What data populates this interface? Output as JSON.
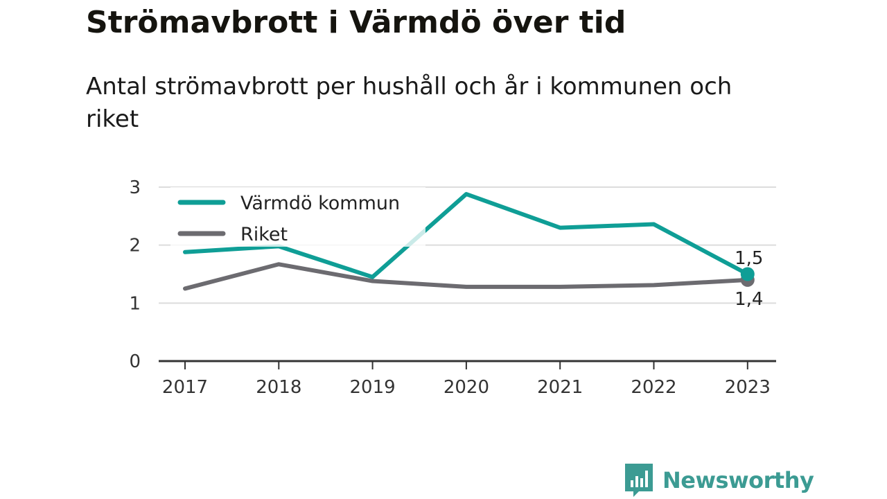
{
  "title": "Strömavbrott i Värmdö över tid",
  "subtitle": "Antal strömavbrott per hushåll och år i kommunen och riket",
  "chart_data": {
    "type": "line",
    "x": [
      "2017",
      "2018",
      "2019",
      "2020",
      "2021",
      "2022",
      "2023"
    ],
    "series": [
      {
        "name": "Värmdö kommun",
        "color": "#0f9e96",
        "values": [
          1.88,
          1.98,
          1.45,
          2.88,
          2.3,
          2.36,
          1.5
        ],
        "end_label": "1,5"
      },
      {
        "name": "Riket",
        "color": "#6c6b70",
        "values": [
          1.25,
          1.67,
          1.38,
          1.28,
          1.28,
          1.31,
          1.4
        ],
        "end_label": "1,4"
      }
    ],
    "ylim": [
      0,
      3
    ],
    "yticks": [
      "0",
      "1",
      "2",
      "3"
    ],
    "grid": true,
    "legend_position": "top-left"
  },
  "brand": {
    "name": "Newsworthy",
    "color": "#3c9b93"
  }
}
